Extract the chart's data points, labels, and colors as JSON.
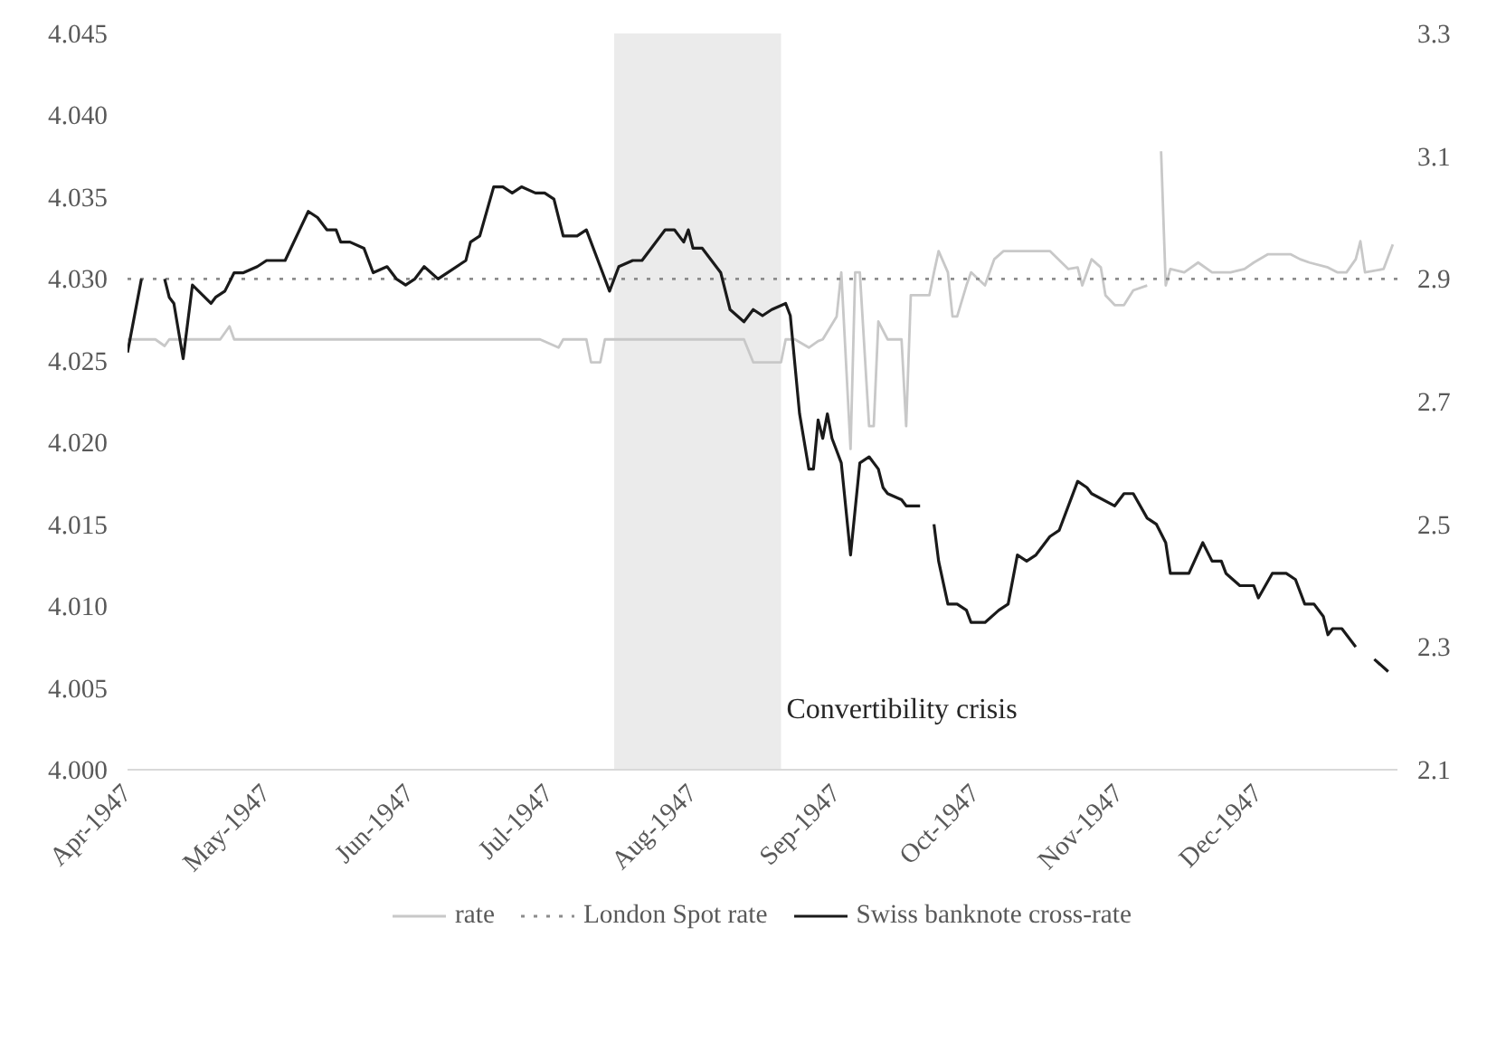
{
  "chart_data": {
    "type": "line",
    "xlim": [
      "1947-04-01",
      "1947-12-31"
    ],
    "xticks": [
      {
        "value": "1947-04-01",
        "label": "Apr-1947"
      },
      {
        "value": "1947-05-01",
        "label": "May-1947"
      },
      {
        "value": "1947-06-01",
        "label": "Jun-1947"
      },
      {
        "value": "1947-07-01",
        "label": "Jul-1947"
      },
      {
        "value": "1947-08-01",
        "label": "Aug-1947"
      },
      {
        "value": "1947-09-01",
        "label": "Sep-1947"
      },
      {
        "value": "1947-10-01",
        "label": "Oct-1947"
      },
      {
        "value": "1947-11-01",
        "label": "Nov-1947"
      },
      {
        "value": "1947-12-01",
        "label": "Dec-1947"
      }
    ],
    "ylim": [
      4.0,
      4.045
    ],
    "yticks": [
      {
        "value": 4.0,
        "label": "4.000"
      },
      {
        "value": 4.005,
        "label": "4.005"
      },
      {
        "value": 4.01,
        "label": "4.010"
      },
      {
        "value": 4.015,
        "label": "4.015"
      },
      {
        "value": 4.02,
        "label": "4.020"
      },
      {
        "value": 4.025,
        "label": "4.025"
      },
      {
        "value": 4.03,
        "label": "4.030"
      },
      {
        "value": 4.035,
        "label": "4.035"
      },
      {
        "value": 4.04,
        "label": "4.040"
      },
      {
        "value": 4.045,
        "label": "4.045"
      }
    ],
    "y2lim": [
      2.1,
      3.3
    ],
    "y2ticks": [
      2.1,
      2.3,
      2.5,
      2.7,
      2.9,
      3.1,
      3.3
    ],
    "grid": false,
    "legend": "bottom",
    "bands": [
      {
        "axis": "x",
        "from": "1947-07-15",
        "to": "1947-08-20",
        "label": "Convertibility crisis",
        "color": "#ebebeb"
      }
    ],
    "series": [
      {
        "name": "rate",
        "color": "#c8c8c8",
        "line_style": "solid",
        "x": [
          "1947-04-01",
          "1947-04-07",
          "1947-04-09",
          "1947-04-10",
          "1947-04-21",
          "1947-04-23",
          "1947-04-24",
          "1947-06-29",
          "1947-07-03",
          "1947-07-04",
          "1947-07-09",
          "1947-07-10",
          "1947-07-12",
          "1947-07-13",
          "1947-08-12",
          "1947-08-14",
          "1947-08-20",
          "1947-08-21",
          "1947-08-23",
          "1947-08-26",
          "1947-08-28",
          "1947-08-29",
          "1947-09-01",
          "1947-09-02",
          "1947-09-04",
          "1947-09-05",
          "1947-09-06",
          "1947-09-08",
          "1947-09-09",
          "1947-09-10",
          "1947-09-12",
          "1947-09-13",
          "1947-09-15",
          "1947-09-16",
          "1947-09-17",
          "1947-09-21",
          "1947-09-22",
          "1947-09-23",
          "1947-09-25",
          "1947-09-26",
          "1947-09-27",
          "1947-09-29",
          "1947-09-30",
          "1947-10-03",
          "1947-10-05",
          "1947-10-07",
          "1947-10-11",
          "1947-10-13",
          "1947-10-17",
          "1947-10-21",
          "1947-10-23",
          "1947-10-24",
          "1947-10-26",
          "1947-10-28",
          "1947-10-29",
          "1947-10-31",
          "1947-11-02",
          "1947-11-04",
          "1947-11-07",
          "1947-11-08",
          "1947-11-10",
          "1947-11-11",
          "1947-11-12",
          "1947-11-15",
          "1947-11-18",
          "1947-11-21",
          "1947-11-25",
          "1947-11-28",
          "1947-11-30",
          "1947-12-03",
          "1947-12-08",
          "1947-12-10",
          "1947-12-12",
          "1947-12-16",
          "1947-12-18",
          "1947-12-20",
          "1947-12-22",
          "1947-12-23",
          "1947-12-24",
          "1947-12-28",
          "1947-12-30"
        ],
        "values": [
          4.0263,
          4.0263,
          4.0259,
          4.0263,
          4.0263,
          4.0271,
          4.0263,
          4.0263,
          4.0258,
          4.0263,
          4.0263,
          4.0249,
          4.0249,
          4.0263,
          4.0263,
          4.0249,
          4.0249,
          4.0263,
          4.0263,
          4.0258,
          4.0262,
          4.0263,
          4.0277,
          4.0304,
          4.0196,
          4.0304,
          4.0304,
          4.021,
          4.021,
          4.0274,
          4.0263,
          4.0263,
          4.0263,
          4.021,
          4.029,
          4.029,
          4.0304,
          4.0317,
          4.0304,
          4.0277,
          4.0277,
          4.0296,
          4.0304,
          4.0296,
          4.0312,
          4.0317,
          4.0317,
          4.0317,
          4.0317,
          4.0306,
          4.0307,
          4.0296,
          4.0312,
          4.0307,
          4.029,
          4.0284,
          4.0284,
          4.0293,
          4.0296,
          null,
          4.0378,
          4.0296,
          4.0306,
          4.0304,
          4.031,
          4.0304,
          4.0304,
          4.0306,
          4.031,
          4.0315,
          4.0315,
          4.0312,
          4.031,
          4.0307,
          4.0304,
          4.0304,
          4.0312,
          4.0323,
          4.0304,
          4.0306,
          4.0321
        ]
      },
      {
        "name": "London Spot rate",
        "color": "#8c8c8c",
        "line_style": "dotted",
        "x": [
          "1947-04-01",
          "1947-12-31"
        ],
        "values": [
          4.03,
          4.03
        ]
      },
      {
        "name": "Swiss banknote cross-rate",
        "color": "#1a1a1a",
        "line_style": "solid",
        "axis": "y2",
        "x": [
          "1947-04-01",
          "1947-04-04",
          "1947-04-06",
          "1947-04-09",
          "1947-04-10",
          "1947-04-11",
          "1947-04-13",
          "1947-04-15",
          "1947-04-19",
          "1947-04-20",
          "1947-04-22",
          "1947-04-24",
          "1947-04-26",
          "1947-04-29",
          "1947-05-01",
          "1947-05-03",
          "1947-05-05",
          "1947-05-10",
          "1947-05-12",
          "1947-05-14",
          "1947-05-16",
          "1947-05-17",
          "1947-05-19",
          "1947-05-22",
          "1947-05-24",
          "1947-05-27",
          "1947-05-29",
          "1947-05-31",
          "1947-06-02",
          "1947-06-04",
          "1947-06-07",
          "1947-06-09",
          "1947-06-13",
          "1947-06-14",
          "1947-06-16",
          "1947-06-19",
          "1947-06-21",
          "1947-06-23",
          "1947-06-25",
          "1947-06-28",
          "1947-06-30",
          "1947-07-02",
          "1947-07-04",
          "1947-07-07",
          "1947-07-09",
          "1947-07-12",
          "1947-07-14",
          "1947-07-16",
          "1947-07-19",
          "1947-07-21",
          "1947-07-23",
          "1947-07-26",
          "1947-07-28",
          "1947-07-30",
          "1947-07-31",
          "1947-08-01",
          "1947-08-03",
          "1947-08-07",
          "1947-08-09",
          "1947-08-12",
          "1947-08-14",
          "1947-08-16",
          "1947-08-18",
          "1947-08-21",
          "1947-08-22",
          "1947-08-24",
          "1947-08-26",
          "1947-08-27",
          "1947-08-28",
          "1947-08-29",
          "1947-08-30",
          "1947-08-31",
          "1947-09-01",
          "1947-09-02",
          "1947-09-04",
          "1947-09-06",
          "1947-09-08",
          "1947-09-10",
          "1947-09-11",
          "1947-09-12",
          "1947-09-15",
          "1947-09-16",
          "1947-09-19",
          "1947-09-21",
          "1947-09-22",
          "1947-09-23",
          "1947-09-25",
          "1947-09-27",
          "1947-09-29",
          "1947-09-30",
          "1947-10-03",
          "1947-10-06",
          "1947-10-08",
          "1947-10-10",
          "1947-10-12",
          "1947-10-14",
          "1947-10-17",
          "1947-10-19",
          "1947-10-23",
          "1947-10-25",
          "1947-10-26",
          "1947-10-31",
          "1947-11-02",
          "1947-11-04",
          "1947-11-07",
          "1947-11-09",
          "1947-11-11",
          "1947-11-12",
          "1947-11-13",
          "1947-11-16",
          "1947-11-19",
          "1947-11-21",
          "1947-11-23",
          "1947-11-24",
          "1947-11-27",
          "1947-11-30",
          "1947-12-01",
          "1947-12-04",
          "1947-12-06",
          "1947-12-07",
          "1947-12-09",
          "1947-12-11",
          "1947-12-13",
          "1947-12-15",
          "1947-12-16",
          "1947-12-17",
          "1947-12-19",
          "1947-12-22",
          "1947-12-24",
          "1947-12-26",
          "1947-12-29"
        ],
        "values": [
          2.78,
          2.9,
          null,
          2.9,
          2.87,
          2.86,
          2.77,
          2.89,
          2.86,
          2.87,
          2.88,
          2.91,
          2.91,
          2.92,
          2.93,
          2.93,
          2.93,
          3.01,
          3.0,
          2.98,
          2.98,
          2.96,
          2.96,
          2.95,
          2.91,
          2.92,
          2.9,
          2.89,
          2.9,
          2.92,
          2.9,
          2.91,
          2.93,
          2.96,
          2.97,
          3.05,
          3.05,
          3.04,
          3.05,
          3.04,
          3.04,
          3.03,
          2.97,
          2.97,
          2.98,
          2.92,
          2.88,
          2.92,
          2.93,
          2.93,
          2.95,
          2.98,
          2.98,
          2.96,
          2.98,
          2.95,
          2.95,
          2.91,
          2.85,
          2.83,
          2.85,
          2.84,
          2.85,
          2.86,
          2.84,
          2.68,
          2.59,
          2.59,
          2.67,
          2.64,
          2.68,
          2.64,
          2.62,
          2.6,
          2.45,
          2.6,
          2.61,
          2.59,
          2.56,
          2.55,
          2.54,
          2.53,
          2.53,
          null,
          2.5,
          2.44,
          2.37,
          2.37,
          2.36,
          2.34,
          2.34,
          2.36,
          2.37,
          2.45,
          2.44,
          2.45,
          2.48,
          2.49,
          2.57,
          2.56,
          2.55,
          2.53,
          2.55,
          2.55,
          2.51,
          2.5,
          2.47,
          2.42,
          2.42,
          2.42,
          2.47,
          2.44,
          2.44,
          2.42,
          2.4,
          2.4,
          2.38,
          2.42,
          2.42,
          2.42,
          2.41,
          2.37,
          2.37,
          2.35,
          2.32,
          2.33,
          2.33,
          2.3,
          null,
          2.28,
          2.26
        ]
      }
    ]
  }
}
